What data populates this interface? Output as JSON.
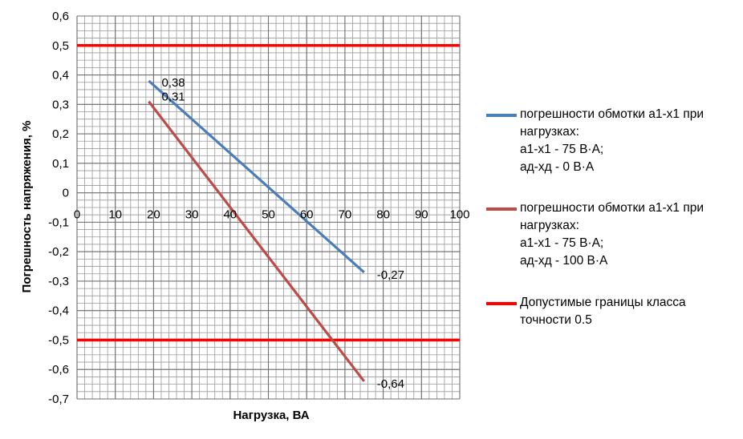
{
  "chart_data": {
    "type": "line",
    "xlabel": "Нагрузка, ВА",
    "ylabel": "Погрешность напряжения, %",
    "xlim": [
      0,
      100
    ],
    "ylim": [
      -0.7,
      0.6
    ],
    "x_ticks": [
      "0",
      "10",
      "20",
      "30",
      "40",
      "50",
      "60",
      "70",
      "80",
      "90",
      "100"
    ],
    "y_ticks": [
      "0,6",
      "0,5",
      "0,4",
      "0,3",
      "0,2",
      "0,1",
      "0",
      "-0,1",
      "-0,2",
      "-0,3",
      "-0,4",
      "-0,5",
      "-0,6",
      "-0,7"
    ],
    "grid": true,
    "legend_position": "right",
    "series": [
      {
        "name_lines": [
          "погрешности обмотки а1-х1 при",
          "нагрузках:",
          "а1-х1 - 75 В·А;",
          "ад-хд - 0 В·А"
        ],
        "color": "#4a7ebb",
        "x": [
          18.75,
          75
        ],
        "y": [
          0.38,
          -0.27
        ],
        "labels": [
          "0,38",
          "-0,27"
        ]
      },
      {
        "name_lines": [
          "погрешности обмотки а1-х1 при",
          "нагрузках:",
          "а1-х1 - 75 В·А;",
          "ад-хд - 100 В·А"
        ],
        "color": "#be4b48",
        "x": [
          18.75,
          75
        ],
        "y": [
          0.31,
          -0.64
        ],
        "labels": [
          "0,31",
          "-0,64"
        ]
      }
    ],
    "limits": {
      "name_lines": [
        "Допустимые границы класса",
        "точности 0.5"
      ],
      "color": "#ff0000",
      "values": [
        0.5,
        -0.5
      ]
    }
  }
}
